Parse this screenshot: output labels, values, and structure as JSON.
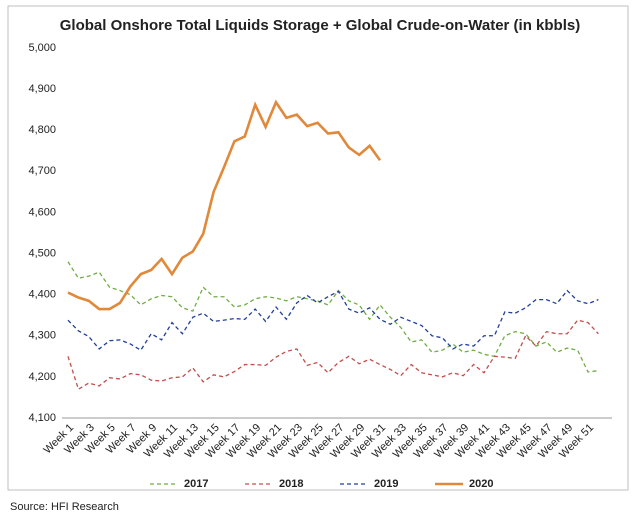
{
  "chart_data": {
    "type": "line",
    "title": "Global Onshore Total Liquids Storage + Global Crude-on-Water (in kbbls)",
    "source": "Source: HFI Research",
    "categories": [
      "Week 1",
      null,
      "Week 3",
      null,
      "Week 5",
      null,
      "Week 7",
      null,
      "Week 9",
      null,
      "Week 11",
      null,
      "Week 13",
      null,
      "Week 15",
      null,
      "Week 17",
      null,
      "Week 19",
      null,
      "Week 21",
      null,
      "Week 23",
      null,
      "Week 25",
      null,
      "Week 27",
      null,
      "Week 29",
      null,
      "Week 31",
      null,
      "Week 33",
      null,
      "Week 35",
      null,
      "Week 37",
      null,
      "Week 39",
      null,
      "Week 41",
      null,
      "Week 43",
      null,
      "Week 45",
      null,
      "Week 47",
      null,
      "Week 49",
      null,
      "Week 51",
      null
    ],
    "ylim": [
      4100,
      5000
    ],
    "yticks": [
      {
        "value": 4100,
        "label": "4,100"
      },
      {
        "value": 4200,
        "label": "4,200"
      },
      {
        "value": 4300,
        "label": "4,300"
      },
      {
        "value": 4400,
        "label": "4,400"
      },
      {
        "value": 4500,
        "label": "4,500"
      },
      {
        "value": 4600,
        "label": "4,600"
      },
      {
        "value": 4700,
        "label": "4,700"
      },
      {
        "value": 4800,
        "label": "4,800"
      },
      {
        "value": 4900,
        "label": "4,900"
      },
      {
        "value": 5000,
        "label": "5,000"
      }
    ],
    "grid": false,
    "legend": "bottom",
    "series": [
      {
        "name": "2017",
        "color": "#70ad47",
        "dashed": true,
        "values": [
          4480,
          4440,
          4445,
          4455,
          4418,
          4410,
          4400,
          4375,
          4390,
          4398,
          4395,
          4368,
          4360,
          4418,
          4395,
          4395,
          4370,
          4375,
          4390,
          4395,
          4392,
          4385,
          4395,
          4390,
          4385,
          4375,
          4410,
          4385,
          4375,
          4340,
          4375,
          4345,
          4320,
          4285,
          4290,
          4260,
          4265,
          4280,
          4260,
          4265,
          4255,
          4250,
          4300,
          4310,
          4305,
          4275,
          4285,
          4260,
          4270,
          4265,
          4212,
          4215
        ]
      },
      {
        "name": "2018",
        "color": "#c0504d",
        "dashed": true,
        "values": [
          4250,
          4170,
          4185,
          4178,
          4198,
          4195,
          4208,
          4205,
          4192,
          4190,
          4198,
          4200,
          4222,
          4188,
          4205,
          4200,
          4213,
          4230,
          4230,
          4228,
          4248,
          4262,
          4268,
          4228,
          4235,
          4210,
          4235,
          4250,
          4232,
          4243,
          4230,
          4218,
          4203,
          4230,
          4210,
          4205,
          4200,
          4210,
          4203,
          4230,
          4210,
          4250,
          4248,
          4245,
          4300,
          4275,
          4310,
          4305,
          4305,
          4338,
          4332,
          4305
        ]
      },
      {
        "name": "2019",
        "color": "#203f9a",
        "dashed": true,
        "values": [
          4338,
          4312,
          4298,
          4268,
          4288,
          4290,
          4280,
          4265,
          4305,
          4290,
          4332,
          4305,
          4345,
          4355,
          4335,
          4338,
          4342,
          4340,
          4365,
          4335,
          4370,
          4340,
          4380,
          4398,
          4380,
          4395,
          4408,
          4365,
          4355,
          4368,
          4340,
          4328,
          4345,
          4335,
          4325,
          4300,
          4295,
          4268,
          4280,
          4275,
          4300,
          4300,
          4358,
          4355,
          4368,
          4388,
          4388,
          4378,
          4410,
          4385,
          4378,
          4388
        ]
      },
      {
        "name": "2020",
        "color": "#e0893a",
        "dashed": false,
        "values": [
          4405,
          4393,
          4385,
          4365,
          4365,
          4380,
          4420,
          4450,
          4460,
          4487,
          4450,
          4490,
          4505,
          4548,
          4650,
          4710,
          4773,
          4785,
          4862,
          4808,
          4868,
          4830,
          4838,
          4810,
          4818,
          4792,
          4795,
          4758,
          4740,
          4762,
          4727,
          null,
          null,
          null,
          null,
          null,
          null,
          null,
          null,
          null,
          null,
          null,
          null,
          null,
          null,
          null,
          null,
          null,
          null,
          null,
          null,
          null
        ]
      }
    ]
  }
}
